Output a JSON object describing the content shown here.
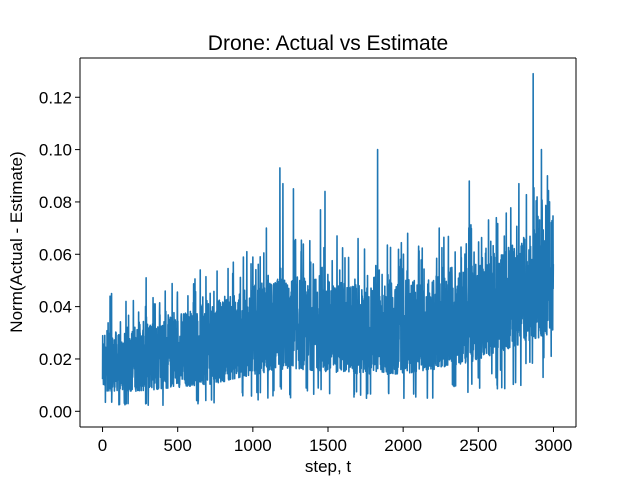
{
  "chart_data": {
    "type": "line",
    "title": "Drone: Actual vs Estimate",
    "xlabel": "step, t",
    "ylabel": "Norm(Actual - Estimate)",
    "xlim": [
      -150,
      3150
    ],
    "ylim": [
      -0.006,
      0.135
    ],
    "xticks": [
      0,
      500,
      1000,
      1500,
      2000,
      2500,
      3000
    ],
    "yticks": [
      0.0,
      0.02,
      0.04,
      0.06,
      0.08,
      0.1,
      0.12
    ],
    "ytick_labels": [
      "0.00",
      "0.02",
      "0.04",
      "0.06",
      "0.08",
      "0.10",
      "0.12"
    ],
    "grid": false,
    "legend": "none",
    "series": [
      {
        "color": "#1f77b4",
        "n_points": 3000,
        "x_range": [
          0,
          2999
        ],
        "trend": [
          {
            "x": 0,
            "low": 0.004,
            "high": 0.029
          },
          {
            "x": 250,
            "low": 0.003,
            "high": 0.034
          },
          {
            "x": 500,
            "low": 0.004,
            "high": 0.038
          },
          {
            "x": 750,
            "low": 0.005,
            "high": 0.042
          },
          {
            "x": 1000,
            "low": 0.008,
            "high": 0.048
          },
          {
            "x": 1250,
            "low": 0.01,
            "high": 0.052
          },
          {
            "x": 1500,
            "low": 0.009,
            "high": 0.05
          },
          {
            "x": 1750,
            "low": 0.008,
            "high": 0.048
          },
          {
            "x": 2000,
            "low": 0.008,
            "high": 0.05
          },
          {
            "x": 2250,
            "low": 0.01,
            "high": 0.052
          },
          {
            "x": 2500,
            "low": 0.013,
            "high": 0.057
          },
          {
            "x": 2750,
            "low": 0.018,
            "high": 0.065
          },
          {
            "x": 2999,
            "low": 0.022,
            "high": 0.075
          }
        ],
        "peaks": [
          {
            "x": 15,
            "y": 0.029
          },
          {
            "x": 50,
            "y": 0.044
          },
          {
            "x": 60,
            "y": 0.045
          },
          {
            "x": 290,
            "y": 0.051
          },
          {
            "x": 650,
            "y": 0.054
          },
          {
            "x": 870,
            "y": 0.057
          },
          {
            "x": 960,
            "y": 0.061
          },
          {
            "x": 1090,
            "y": 0.07
          },
          {
            "x": 1180,
            "y": 0.093
          },
          {
            "x": 1200,
            "y": 0.087
          },
          {
            "x": 1270,
            "y": 0.085
          },
          {
            "x": 1450,
            "y": 0.077
          },
          {
            "x": 1480,
            "y": 0.084
          },
          {
            "x": 1560,
            "y": 0.067
          },
          {
            "x": 1700,
            "y": 0.066
          },
          {
            "x": 1830,
            "y": 0.1
          },
          {
            "x": 2030,
            "y": 0.068
          },
          {
            "x": 2240,
            "y": 0.07
          },
          {
            "x": 2440,
            "y": 0.088
          },
          {
            "x": 2620,
            "y": 0.074
          },
          {
            "x": 2770,
            "y": 0.087
          },
          {
            "x": 2865,
            "y": 0.129
          },
          {
            "x": 2920,
            "y": 0.1
          },
          {
            "x": 2960,
            "y": 0.09
          }
        ]
      }
    ]
  }
}
